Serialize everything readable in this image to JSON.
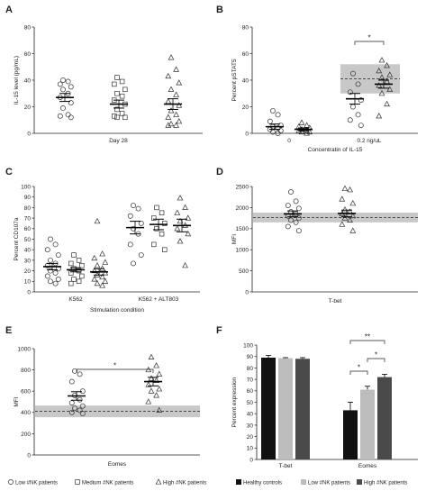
{
  "chart_data": [
    {
      "panel": "A",
      "type": "scatter",
      "ylabel": "IL-15 level (pg/mL)",
      "ylim": [
        0,
        80
      ],
      "yticks": [
        "0",
        "20",
        "40",
        "60",
        "80"
      ],
      "categories": [
        "Day 28"
      ],
      "series": [
        {
          "name": "Low #NK patients",
          "marker": "circle",
          "values": [
            40,
            39,
            37,
            35,
            33,
            30,
            27,
            23,
            19,
            14,
            13,
            12
          ],
          "mean": 27,
          "sem": 3
        },
        {
          "name": "Medium #NK patients",
          "marker": "square",
          "values": [
            42,
            39,
            37,
            33,
            30,
            28,
            25,
            22,
            18,
            15,
            13,
            12,
            12
          ],
          "mean": 22,
          "sem": 3
        },
        {
          "name": "High #NK patients",
          "marker": "triangle",
          "values": [
            57,
            48,
            43,
            38,
            33,
            29,
            24,
            21,
            17,
            14,
            12,
            9,
            7,
            6,
            6
          ],
          "mean": 22,
          "sem": 4
        }
      ]
    },
    {
      "panel": "B",
      "type": "scatter",
      "ylabel": "Percent pSTAT5",
      "xlabel": "Concentratin of IL-15",
      "ylim": [
        0,
        80
      ],
      "yticks": [
        "0",
        "20",
        "40",
        "60",
        "80"
      ],
      "categories": [
        "0",
        "0.2 ng/uL"
      ],
      "reference_band": {
        "group": "0.2 ng/uL",
        "range": [
          30,
          52
        ],
        "line": 41
      },
      "significance": [
        {
          "label": "*",
          "between": [
            "low",
            "high"
          ],
          "group": "0.2 ng/uL"
        }
      ],
      "groups": [
        {
          "category": "0",
          "series": [
            {
              "marker": "circle",
              "values": [
                17,
                14,
                9,
                6,
                5,
                4,
                3,
                2,
                1,
                0
              ],
              "mean": 5,
              "sem": 2
            },
            {
              "marker": "triangle",
              "values": [
                8,
                6,
                5,
                4,
                3,
                2,
                2,
                1,
                1,
                0
              ],
              "mean": 3,
              "sem": 1
            }
          ]
        },
        {
          "category": "0.2 ng/uL",
          "series": [
            {
              "marker": "circle",
              "values": [
                45,
                37,
                31,
                25,
                20,
                14,
                10,
                6
              ],
              "mean": 26,
              "sem": 4
            },
            {
              "marker": "triangle",
              "values": [
                55,
                51,
                47,
                44,
                42,
                39,
                36,
                33,
                30,
                22,
                13
              ],
              "mean": 37,
              "sem": 3
            }
          ]
        }
      ]
    },
    {
      "panel": "C",
      "type": "scatter",
      "ylabel": "Percent CD107a",
      "xlabel": "Stimulation condition",
      "ylim": [
        0,
        100
      ],
      "yticks": [
        "0",
        "10",
        "20",
        "30",
        "40",
        "50",
        "60",
        "70",
        "80",
        "90",
        "100"
      ],
      "categories": [
        "K562",
        "K562 + ALT803"
      ],
      "groups": [
        {
          "category": "K562",
          "series": [
            {
              "marker": "circle",
              "values": [
                50,
                45,
                40,
                35,
                30,
                27,
                25,
                22,
                20,
                18,
                15,
                12,
                10,
                8
              ],
              "mean": 24,
              "sem": 3
            },
            {
              "marker": "square",
              "values": [
                35,
                30,
                27,
                25,
                22,
                20,
                18,
                15,
                12,
                10,
                8
              ],
              "mean": 21,
              "sem": 2
            },
            {
              "marker": "triangle",
              "values": [
                67,
                36,
                32,
                28,
                25,
                22,
                20,
                18,
                16,
                14,
                12,
                10,
                8,
                6
              ],
              "mean": 19,
              "sem": 3
            }
          ]
        },
        {
          "category": "K562 + ALT803",
          "series": [
            {
              "marker": "circle",
              "values": [
                82,
                79,
                72,
                65,
                60,
                55,
                45,
                35,
                27
              ],
              "mean": 61,
              "sem": 6
            },
            {
              "marker": "square",
              "values": [
                80,
                75,
                70,
                65,
                60,
                55,
                45,
                40
              ],
              "mean": 64,
              "sem": 5
            },
            {
              "marker": "triangle",
              "values": [
                89,
                80,
                75,
                70,
                67,
                63,
                60,
                55,
                48,
                25
              ],
              "mean": 63,
              "sem": 6
            }
          ]
        }
      ]
    },
    {
      "panel": "D",
      "type": "scatter",
      "ylabel": "MFI",
      "xlabel": "T-bet",
      "ylim": [
        0,
        2500
      ],
      "yticks": [
        "0",
        "500",
        "1000",
        "1500",
        "2000",
        "2500"
      ],
      "reference_band": {
        "range": [
          1650,
          1880
        ],
        "line": 1760
      },
      "groups": [
        {
          "series": [
            {
              "marker": "circle",
              "values": [
                2370,
                2150,
                2050,
                1980,
                1900,
                1850,
                1800,
                1750,
                1700,
                1650,
                1550,
                1450
              ],
              "mean": 1850,
              "sem": 70
            }
          ]
        },
        {
          "series": [
            {
              "marker": "triangle",
              "values": [
                2450,
                2420,
                2200,
                2100,
                1950,
                1900,
                1850,
                1800,
                1750,
                1700,
                1600,
                1450
              ],
              "mean": 1860,
              "sem": 80
            }
          ]
        }
      ]
    },
    {
      "panel": "E",
      "type": "scatter",
      "ylabel": "MFI",
      "xlabel": "Eomes",
      "ylim": [
        0,
        1000
      ],
      "yticks": [
        "0",
        "200",
        "400",
        "600",
        "800",
        "1000"
      ],
      "reference_band": {
        "range": [
          355,
          465
        ],
        "line": 410
      },
      "significance": [
        {
          "label": "*",
          "between": [
            "low",
            "high"
          ]
        }
      ],
      "groups": [
        {
          "series": [
            {
              "marker": "circle",
              "values": [
                790,
                760,
                690,
                600,
                560,
                520,
                490,
                460,
                440,
                420,
                400,
                390
              ],
              "mean": 555,
              "sem": 40
            }
          ]
        },
        {
          "series": [
            {
              "marker": "triangle",
              "values": [
                920,
                840,
                800,
                760,
                720,
                700,
                660,
                620,
                600,
                560,
                500,
                420
              ],
              "mean": 690,
              "sem": 40
            }
          ]
        }
      ]
    },
    {
      "panel": "F",
      "type": "bar",
      "ylabel": "Percent expression",
      "ylim": [
        0,
        100
      ],
      "yticks": [
        "0",
        "10",
        "20",
        "30",
        "40",
        "50",
        "60",
        "70",
        "80",
        "90",
        "100"
      ],
      "categories": [
        "T-bet",
        "Eomes"
      ],
      "series": [
        {
          "name": "Healthy controls",
          "color": "#111111",
          "values": [
            89,
            43
          ],
          "err": [
            2,
            7
          ]
        },
        {
          "name": "Low #NK patients",
          "color": "#bdbdbd",
          "values": [
            88.5,
            61
          ],
          "err": [
            0.5,
            3
          ]
        },
        {
          "name": "High #NK patients",
          "color": "#4a4a4a",
          "values": [
            88,
            72
          ],
          "err": [
            1,
            2.5
          ]
        }
      ],
      "significance": [
        {
          "label": "*",
          "category": "Eomes",
          "between": [
            0,
            1
          ]
        },
        {
          "label": "*",
          "category": "Eomes",
          "between": [
            1,
            2
          ]
        },
        {
          "label": "**",
          "category": "Eomes",
          "between": [
            0,
            2
          ]
        }
      ]
    }
  ],
  "legend": [
    {
      "marker": "circle",
      "label": "Low #NK patients"
    },
    {
      "marker": "square",
      "label": "Medium #NK patients"
    },
    {
      "marker": "triangle",
      "label": "High #NK patients"
    }
  ]
}
